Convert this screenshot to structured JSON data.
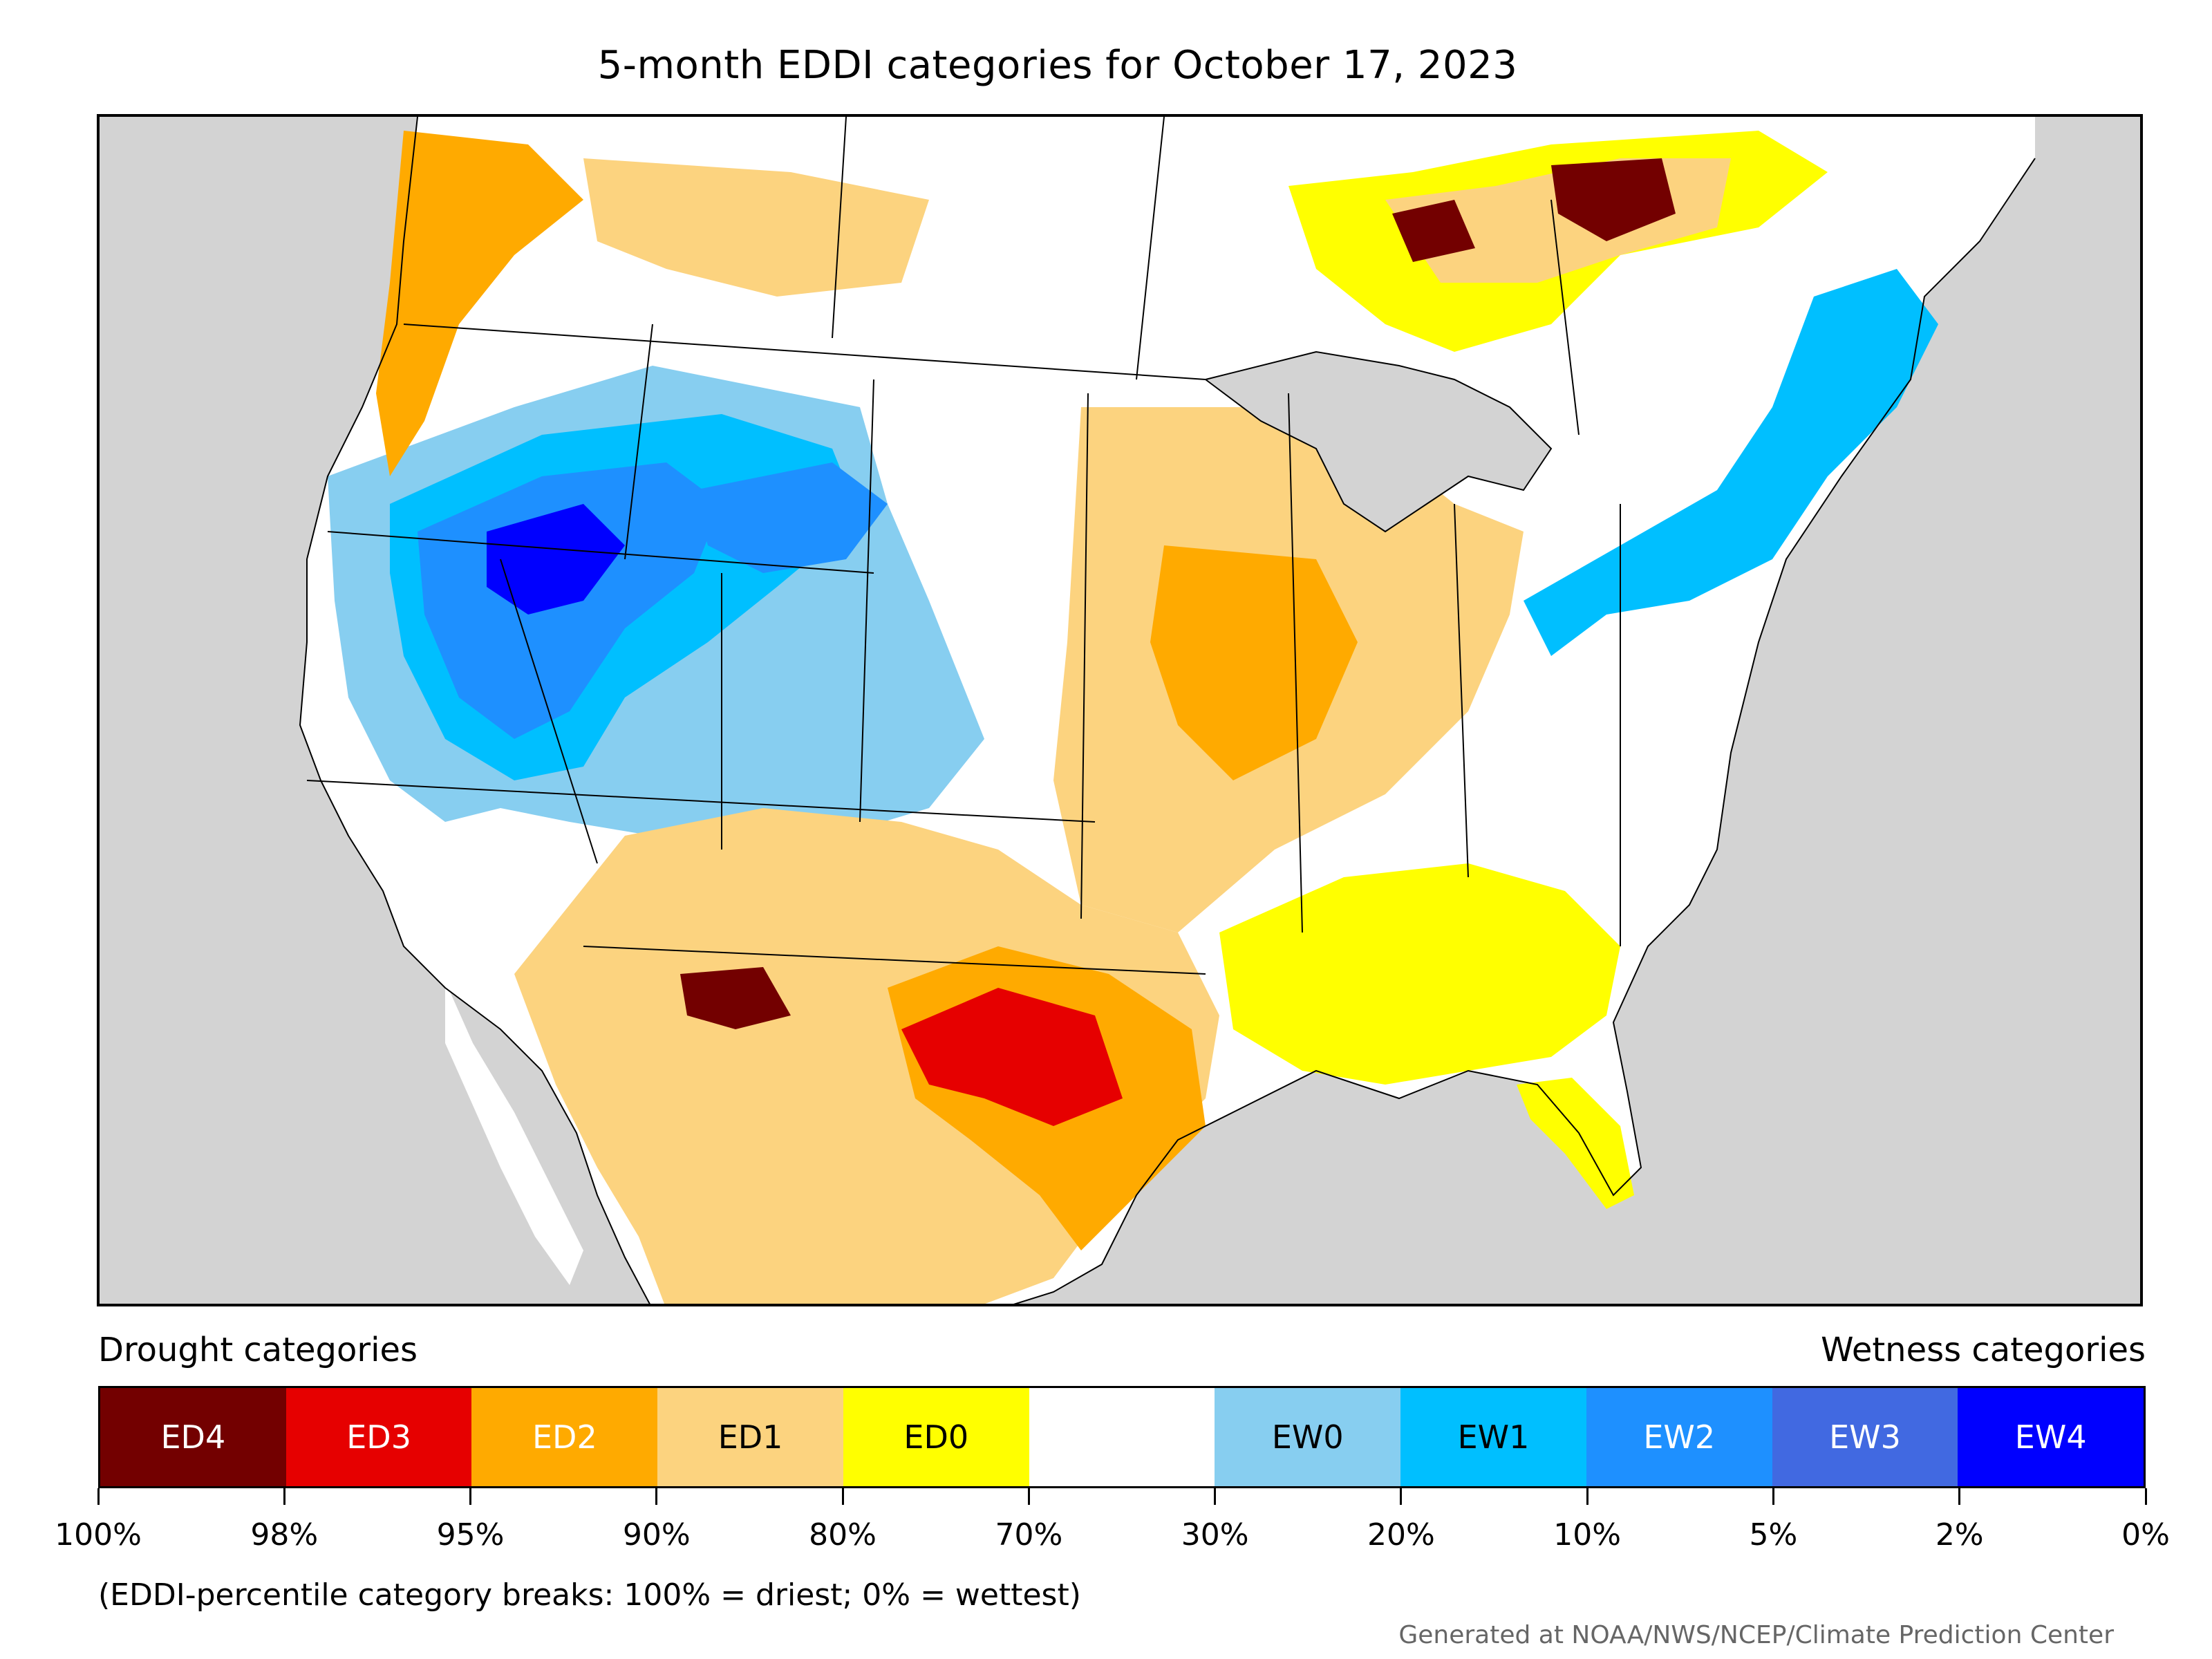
{
  "title": "5-month EDDI categories for October 17, 2023",
  "legend": {
    "drought_heading": "Drought categories",
    "wetness_heading": "Wetness categories",
    "categories": [
      {
        "label": "ED4",
        "color": "#730000",
        "text_color": "#ffffff"
      },
      {
        "label": "ED3",
        "color": "#e60000",
        "text_color": "#ffffff"
      },
      {
        "label": "ED2",
        "color": "#ffaa00",
        "text_color": "#ffffff"
      },
      {
        "label": "ED1",
        "color": "#fcd37f",
        "text_color": "#000000"
      },
      {
        "label": "ED0",
        "color": "#ffff00",
        "text_color": "#000000"
      },
      {
        "label": "",
        "color": "#ffffff",
        "text_color": "#000000"
      },
      {
        "label": "EW0",
        "color": "#87cef0",
        "text_color": "#000000"
      },
      {
        "label": "EW1",
        "color": "#00bfff",
        "text_color": "#000000"
      },
      {
        "label": "EW2",
        "color": "#1e90ff",
        "text_color": "#ffffff"
      },
      {
        "label": "EW3",
        "color": "#4169e1",
        "text_color": "#ffffff"
      },
      {
        "label": "EW4",
        "color": "#0000ff",
        "text_color": "#ffffff"
      }
    ],
    "tick_labels": [
      "100%",
      "98%",
      "95%",
      "90%",
      "80%",
      "70%",
      "30%",
      "20%",
      "10%",
      "5%",
      "2%",
      "0%"
    ]
  },
  "note": "(EDDI-percentile category breaks: 100% = driest; 0% = wettest)",
  "credit": "Generated at NOAA/NWS/NCEP/Climate Prediction Center",
  "map_colors": {
    "ocean": "#d3d3d3",
    "land_background": "#ffffff",
    "borders": "#000000"
  }
}
